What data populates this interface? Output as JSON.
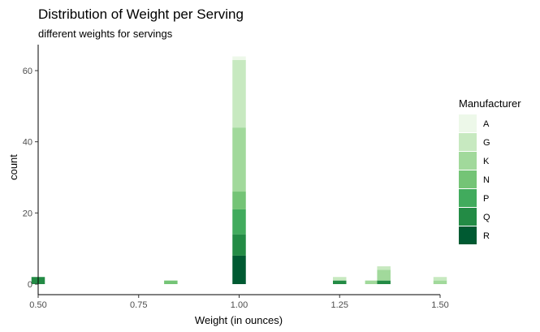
{
  "chart_data": {
    "type": "bar",
    "title": "Distribution of Weight per Serving",
    "subtitle": "different weights for servings",
    "xlabel": "Weight (in ounces)",
    "ylabel": "count",
    "xlim": [
      0.5,
      1.5
    ],
    "ylim": [
      0,
      65
    ],
    "x_ticks": [
      {
        "value": 0.5,
        "label": "0.50"
      },
      {
        "value": 0.75,
        "label": "0.75"
      },
      {
        "value": 1.0,
        "label": "1.00"
      },
      {
        "value": 1.25,
        "label": "1.25"
      },
      {
        "value": 1.5,
        "label": "1.50"
      }
    ],
    "y_ticks": [
      {
        "value": 0,
        "label": "0"
      },
      {
        "value": 20,
        "label": "20"
      },
      {
        "value": 40,
        "label": "40"
      },
      {
        "value": 60,
        "label": "60"
      }
    ],
    "grid": false,
    "stacked": true,
    "legend": {
      "title": "Manufacturer",
      "position": "right",
      "entries": [
        {
          "name": "A",
          "color": "#edf8e9"
        },
        {
          "name": "G",
          "color": "#c7e9c0"
        },
        {
          "name": "K",
          "color": "#a1d99b"
        },
        {
          "name": "N",
          "color": "#74c476"
        },
        {
          "name": "P",
          "color": "#41ab5d"
        },
        {
          "name": "Q",
          "color": "#238b45"
        },
        {
          "name": "R",
          "color": "#005a32"
        }
      ]
    },
    "bins": [
      {
        "x": 0.5,
        "stacks": [
          {
            "name": "Q",
            "count": 2
          }
        ]
      },
      {
        "x": 0.83,
        "stacks": [
          {
            "name": "N",
            "count": 1
          }
        ]
      },
      {
        "x": 1.0,
        "stacks": [
          {
            "name": "R",
            "count": 8
          },
          {
            "name": "Q",
            "count": 6
          },
          {
            "name": "P",
            "count": 7
          },
          {
            "name": "N",
            "count": 5
          },
          {
            "name": "K",
            "count": 18
          },
          {
            "name": "G",
            "count": 19
          },
          {
            "name": "A",
            "count": 1
          }
        ]
      },
      {
        "x": 1.25,
        "stacks": [
          {
            "name": "Q",
            "count": 1
          },
          {
            "name": "G",
            "count": 1
          }
        ]
      },
      {
        "x": 1.33,
        "stacks": [
          {
            "name": "K",
            "count": 1
          }
        ]
      },
      {
        "x": 1.36,
        "stacks": [
          {
            "name": "Q",
            "count": 1
          },
          {
            "name": "K",
            "count": 3
          },
          {
            "name": "G",
            "count": 1
          }
        ]
      },
      {
        "x": 1.5,
        "stacks": [
          {
            "name": "K",
            "count": 1
          },
          {
            "name": "G",
            "count": 1
          }
        ]
      }
    ]
  }
}
